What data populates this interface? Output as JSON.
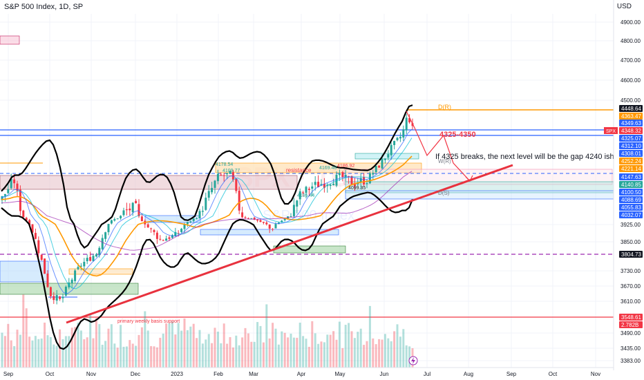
{
  "header": {
    "title": "S&P 500 Index, 1D, SP",
    "currency": "USD"
  },
  "watermark": {
    "symbol": "SPX",
    "interval": "1D",
    "name": "S&P 500 Index"
  },
  "chart_data": {
    "type": "candlestick",
    "x_ticks": [
      "Sep",
      "Oct",
      "Nov",
      "Dec",
      "2023",
      "Feb",
      "Mar",
      "Apr",
      "May",
      "Jun",
      "Jul",
      "Aug",
      "Sep",
      "Oct",
      "Nov"
    ],
    "y_axis_ticks": [
      "4900.00",
      "4800.00",
      "4700.00",
      "4600.00",
      "4500.00",
      "3925.00",
      "3850.00",
      "3730.00",
      "3670.00",
      "3610.00",
      "3490.00",
      "3435.00",
      "3383.00"
    ],
    "price_labels": [
      {
        "text": "4448.64",
        "color": "#131722"
      },
      {
        "text": "4363.47",
        "color": "#ff9800"
      },
      {
        "text": "4349.63",
        "color": "#2962ff"
      },
      {
        "text": "4348.32",
        "color": "#f23645",
        "tag": "SPX"
      },
      {
        "text": "4325.07",
        "color": "#2962ff"
      },
      {
        "text": "4312.10",
        "color": "#2962ff"
      },
      {
        "text": "4308.01",
        "color": "#2962ff"
      },
      {
        "text": "4252.24",
        "color": "#ff9800"
      },
      {
        "text": "4221.14",
        "color": "#ff9800"
      },
      {
        "text": "4147.63",
        "color": "#2962ff"
      },
      {
        "text": "4140.85",
        "color": "#26a69a"
      },
      {
        "text": "4100.50",
        "color": "#2962ff"
      },
      {
        "text": "4088.69",
        "color": "#2962ff"
      },
      {
        "text": "4055.83",
        "color": "#2962ff"
      },
      {
        "text": "4032.07",
        "color": "#2962ff"
      },
      {
        "text": "3804.73",
        "color": "#131722"
      },
      {
        "text": "3548.61",
        "color": "#f23645"
      },
      {
        "text": "2.782B",
        "color": "#f23645"
      }
    ],
    "annotations": [
      {
        "text": "D(R)",
        "color": "#ff9800"
      },
      {
        "text": "4325-4350",
        "color": "#f23645"
      },
      {
        "text": "If 4325 breaks, the next level will be the gap 4240 ish",
        "color": "#131722"
      },
      {
        "text": "W(R)",
        "color": "#787b86"
      },
      {
        "text": "resistance",
        "color": "#f23645"
      },
      {
        "text": "4169.48",
        "color": "#26a69a"
      },
      {
        "text": "4186.92",
        "color": "#f23645"
      },
      {
        "text": "4178.54",
        "color": "#26a69a"
      },
      {
        "text": "4109.77",
        "color": "#26a69a"
      },
      {
        "text": "4195.44",
        "color": "#26a69a"
      },
      {
        "text": "4099.35",
        "color": "#131722"
      },
      {
        "text": "D(S)",
        "color": "#787b86"
      },
      {
        "text": "primary weekly basis support",
        "color": "#f23645"
      }
    ],
    "levels": {
      "d_r": 4448.64,
      "last": 4348.32,
      "support_a": 4325.07,
      "support_b": 3804.73,
      "weekly_support": 3548.61
    },
    "colors": {
      "up": "#26a69a",
      "down": "#f23645",
      "trend": "#e8323e",
      "bands": "#000000",
      "ema_fast": "#ff9800",
      "sma": "#2962ff"
    },
    "style": {
      "grid": true,
      "chart_type": "candlestick with volume, Bollinger bands, moving averages, trendline"
    }
  }
}
